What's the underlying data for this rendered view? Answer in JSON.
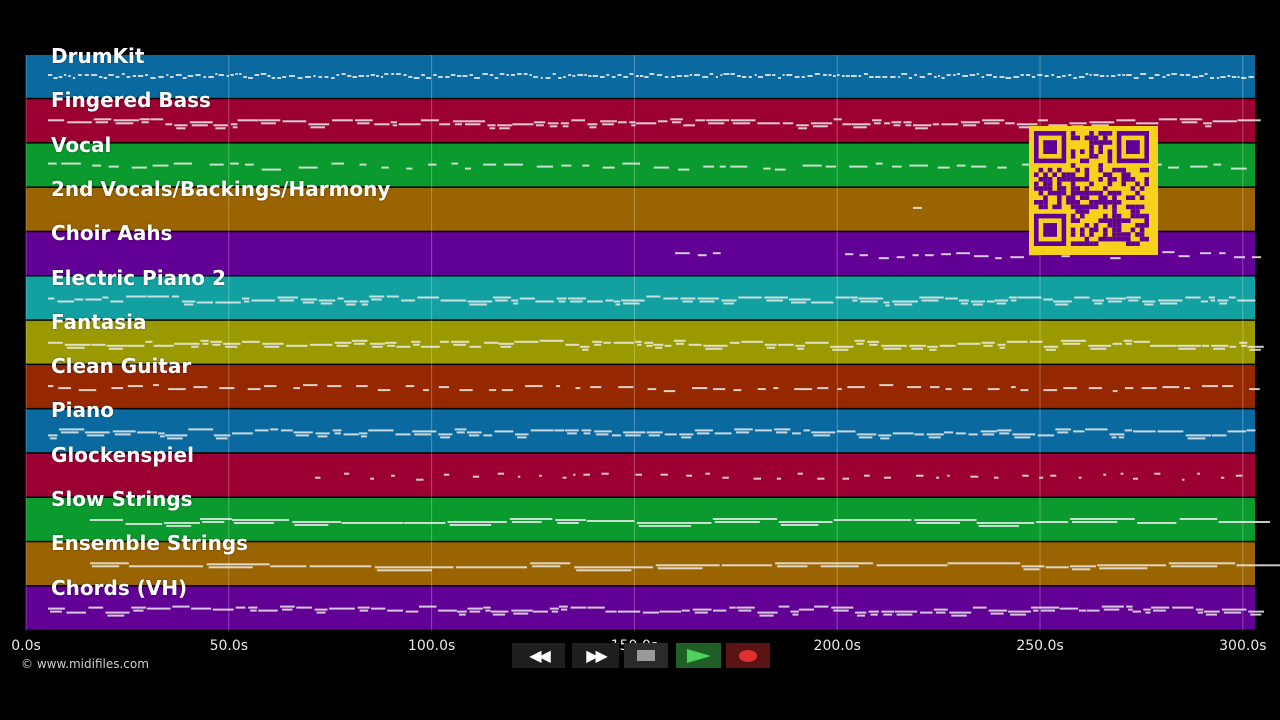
{
  "timeline": {
    "duration_s": 303,
    "tick_values": [
      0,
      50,
      100,
      150,
      200,
      250,
      300
    ],
    "tick_labels": [
      "0.0s",
      "50.0s",
      "100.0s",
      "150.0s",
      "200.0s",
      "250.0s",
      "300.0s"
    ]
  },
  "tracks": [
    {
      "name": "DrumKit",
      "color": "#0a6aa0",
      "pattern": "dense"
    },
    {
      "name": "Fingered Bass",
      "color": "#9c0032",
      "pattern": "line"
    },
    {
      "name": "Vocal",
      "color": "#0a9a2e",
      "pattern": "dashes"
    },
    {
      "name": "2nd Vocals/Backings/Harmony",
      "color": "#9a6400",
      "pattern": "single"
    },
    {
      "name": "Choir Aahs",
      "color": "#620096",
      "pattern": "late"
    },
    {
      "name": "Electric Piano 2",
      "color": "#12a0a0",
      "pattern": "line"
    },
    {
      "name": "Fantasia",
      "color": "#9a9a00",
      "pattern": "line"
    },
    {
      "name": "Clean Guitar",
      "color": "#962800",
      "pattern": "blocks"
    },
    {
      "name": "Piano",
      "color": "#0a6aa0",
      "pattern": "line"
    },
    {
      "name": "Glockenspiel",
      "color": "#9c0032",
      "pattern": "sparse"
    },
    {
      "name": "Slow Strings",
      "color": "#0a9a2e",
      "pattern": "long"
    },
    {
      "name": "Ensemble Strings",
      "color": "#9a6400",
      "pattern": "long"
    },
    {
      "name": "Chords (VH)",
      "color": "#620096",
      "pattern": "line"
    }
  ],
  "copyright": "© www.midifiles.com",
  "qr": {
    "color": "#f7d21c",
    "module_color": "#620096"
  },
  "transport": {
    "rewind_icon": "rewind-icon",
    "forward_icon": "fast-forward-icon",
    "stop_icon": "stop-icon",
    "play_icon": "play-icon",
    "record_icon": "record-icon",
    "play_color": "#4cd15a",
    "record_color": "#e03030"
  }
}
